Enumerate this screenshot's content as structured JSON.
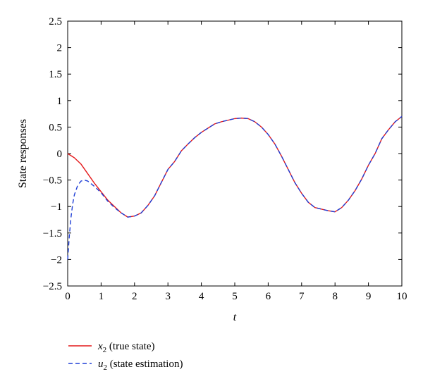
{
  "chart_data": {
    "type": "line",
    "title": "",
    "xlabel": "t",
    "ylabel": "State responses",
    "xlim": [
      0,
      10
    ],
    "ylim": [
      -2.5,
      2.5
    ],
    "xticks": [
      0,
      1,
      2,
      3,
      4,
      5,
      6,
      7,
      8,
      9,
      10
    ],
    "yticks": [
      -2.5,
      -2,
      -1.5,
      -1,
      -0.5,
      0,
      0.5,
      1,
      1.5,
      2,
      2.5
    ],
    "grid": false,
    "legend_position": "below",
    "series": [
      {
        "name": "x₂ (true state)",
        "label_var": "x",
        "label_sub": "2",
        "label_rest": " (true state)",
        "color": "#e41a1c",
        "style": "solid",
        "x": [
          0,
          0.2,
          0.4,
          0.6,
          0.8,
          1.0,
          1.2,
          1.4,
          1.6,
          1.8,
          2.0,
          2.2,
          2.4,
          2.6,
          2.8,
          3.0,
          3.2,
          3.4,
          3.6,
          3.8,
          4.0,
          4.2,
          4.4,
          4.6,
          4.8,
          5.0,
          5.2,
          5.4,
          5.6,
          5.8,
          6.0,
          6.2,
          6.4,
          6.6,
          6.8,
          7.0,
          7.2,
          7.4,
          7.6,
          7.8,
          8.0,
          8.2,
          8.4,
          8.6,
          8.8,
          9.0,
          9.2,
          9.4,
          9.6,
          9.8,
          10.0
        ],
        "y": [
          0.0,
          -0.08,
          -0.2,
          -0.38,
          -0.56,
          -0.72,
          -0.88,
          -1.0,
          -1.12,
          -1.2,
          -1.18,
          -1.12,
          -0.98,
          -0.8,
          -0.55,
          -0.3,
          -0.15,
          0.05,
          0.18,
          0.3,
          0.4,
          0.48,
          0.56,
          0.6,
          0.63,
          0.66,
          0.67,
          0.66,
          0.6,
          0.5,
          0.36,
          0.18,
          -0.05,
          -0.3,
          -0.55,
          -0.75,
          -0.92,
          -1.02,
          -1.05,
          -1.08,
          -1.1,
          -1.02,
          -0.88,
          -0.7,
          -0.48,
          -0.22,
          0.0,
          0.28,
          0.45,
          0.6,
          0.7
        ]
      },
      {
        "name": "u₂ (state estimation)",
        "label_var": "u",
        "label_sub": "2",
        "label_rest": " (state estimation)",
        "color": "#1f3fd6",
        "style": "dashed",
        "x": [
          0,
          0.05,
          0.1,
          0.15,
          0.2,
          0.3,
          0.4,
          0.5,
          0.6,
          0.7,
          0.8,
          1.0,
          1.2,
          1.4,
          1.6,
          1.8,
          2.0,
          2.2,
          2.4,
          2.6,
          2.8,
          3.0,
          3.2,
          3.4,
          3.6,
          3.8,
          4.0,
          4.2,
          4.4,
          4.6,
          4.8,
          5.0,
          5.2,
          5.4,
          5.6,
          5.8,
          6.0,
          6.2,
          6.4,
          6.6,
          6.8,
          7.0,
          7.2,
          7.4,
          7.6,
          7.8,
          8.0,
          8.2,
          8.4,
          8.6,
          8.8,
          9.0,
          9.2,
          9.4,
          9.6,
          9.8,
          10.0
        ],
        "y": [
          -2.0,
          -1.55,
          -1.2,
          -0.95,
          -0.78,
          -0.6,
          -0.52,
          -0.5,
          -0.52,
          -0.57,
          -0.62,
          -0.74,
          -0.9,
          -1.02,
          -1.12,
          -1.2,
          -1.18,
          -1.12,
          -0.98,
          -0.8,
          -0.55,
          -0.3,
          -0.15,
          0.05,
          0.18,
          0.3,
          0.4,
          0.48,
          0.56,
          0.6,
          0.63,
          0.66,
          0.67,
          0.66,
          0.6,
          0.5,
          0.36,
          0.18,
          -0.05,
          -0.3,
          -0.55,
          -0.75,
          -0.92,
          -1.02,
          -1.05,
          -1.08,
          -1.1,
          -1.02,
          -0.88,
          -0.7,
          -0.48,
          -0.22,
          0.0,
          0.28,
          0.45,
          0.6,
          0.7
        ]
      }
    ]
  }
}
